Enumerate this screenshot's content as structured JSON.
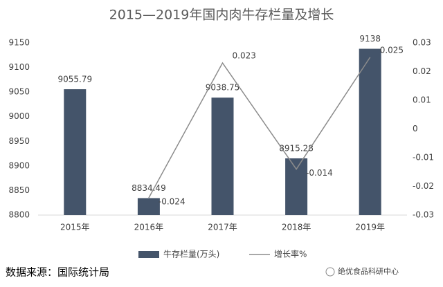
{
  "chart_data": {
    "type": "combo",
    "title": "2015—2019年国内肉牛存栏量及增长",
    "categories": [
      "2015年",
      "2016年",
      "2017年",
      "2018年",
      "2019年"
    ],
    "series": [
      {
        "name": "牛存栏量(万头)",
        "type": "bar",
        "color": "#44546a",
        "values": [
          9055.79,
          8834.49,
          9038.75,
          8915.28,
          9138
        ]
      },
      {
        "name": "增长率%",
        "type": "line",
        "axis": "y2",
        "color": "#8c8c8c",
        "values": [
          null,
          -0.024,
          0.023,
          -0.014,
          0.025
        ]
      }
    ],
    "ylim": [
      8800,
      9150
    ],
    "yticks": [
      8800,
      8850,
      8900,
      8950,
      9000,
      9050,
      9100,
      9150
    ],
    "y2lim": [
      -0.03,
      0.03
    ],
    "y2ticks": [
      -0.03,
      -0.02,
      -0.01,
      0,
      0.01,
      0.02,
      0.03
    ],
    "legend": "bottom",
    "source": "数据来源：国际统计局",
    "brand": "绝优食品科研中心"
  }
}
